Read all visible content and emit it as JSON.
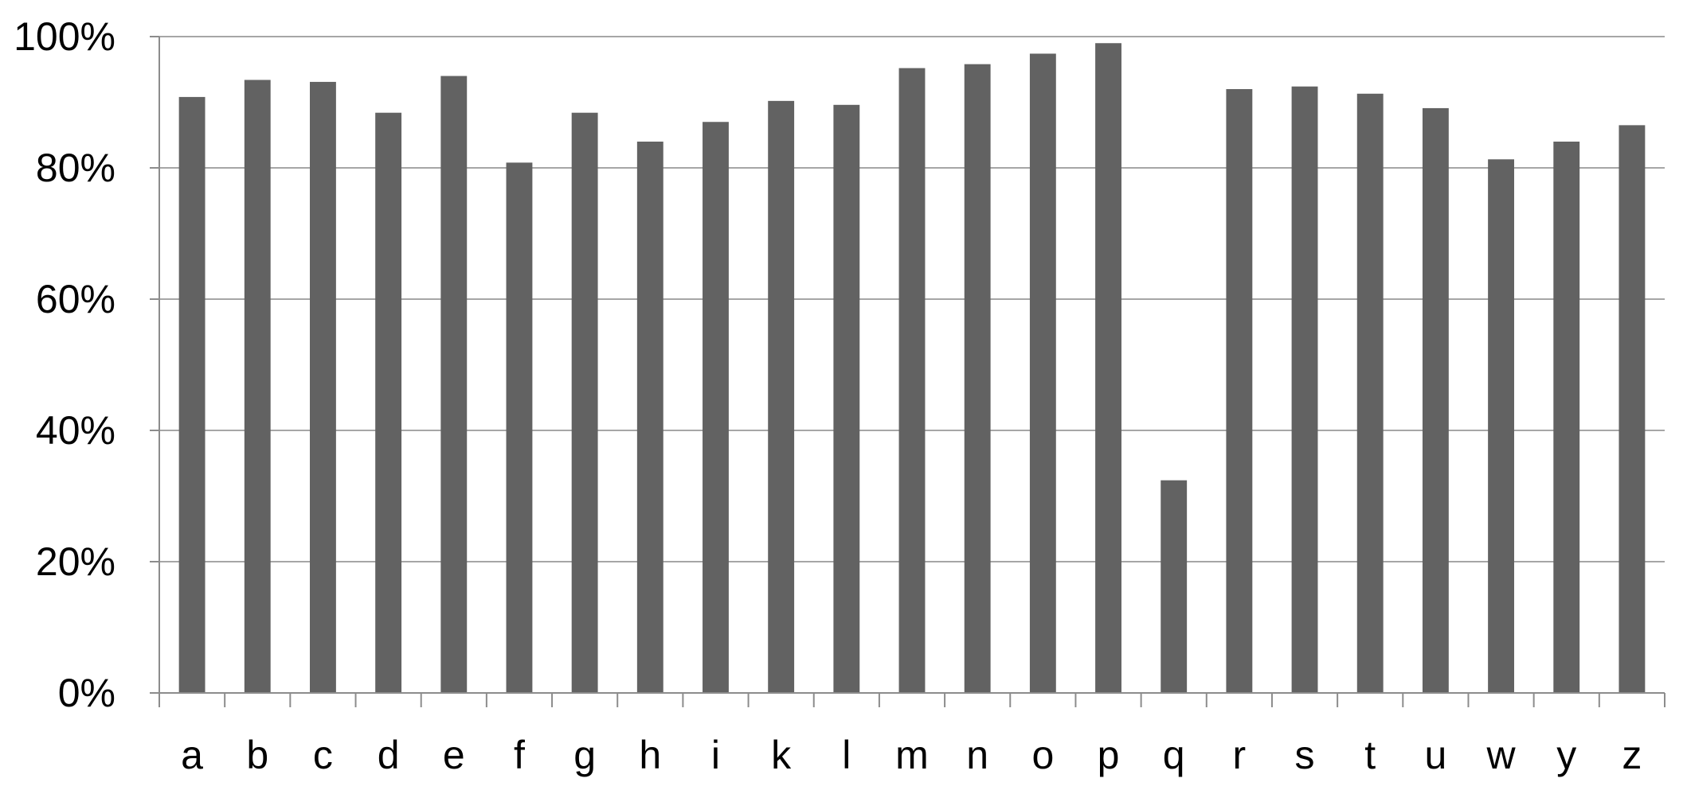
{
  "chart_data": {
    "type": "bar",
    "title": "",
    "xlabel": "",
    "ylabel": "",
    "categories": [
      "a",
      "b",
      "c",
      "d",
      "e",
      "f",
      "g",
      "h",
      "i",
      "k",
      "l",
      "m",
      "n",
      "o",
      "p",
      "q",
      "r",
      "s",
      "t",
      "u",
      "w",
      "y",
      "z"
    ],
    "values": [
      90.8,
      93.4,
      93.1,
      88.4,
      94.0,
      80.8,
      88.4,
      84.0,
      87.0,
      90.2,
      89.6,
      95.2,
      95.8,
      97.4,
      99.0,
      32.4,
      92.0,
      92.4,
      91.3,
      89.1,
      81.3,
      84.0,
      86.5
    ],
    "ylim": [
      0,
      100
    ],
    "yticks": [
      0,
      20,
      40,
      60,
      80,
      100
    ],
    "ytick_labels": [
      "0%",
      "20%",
      "40%",
      "60%",
      "80%",
      "100%"
    ],
    "grid": true,
    "legend": "none",
    "colors": {
      "bar": "#626262",
      "grid": "#a6a6a6",
      "axis": "#8c8c8c",
      "text": "#000000"
    }
  }
}
